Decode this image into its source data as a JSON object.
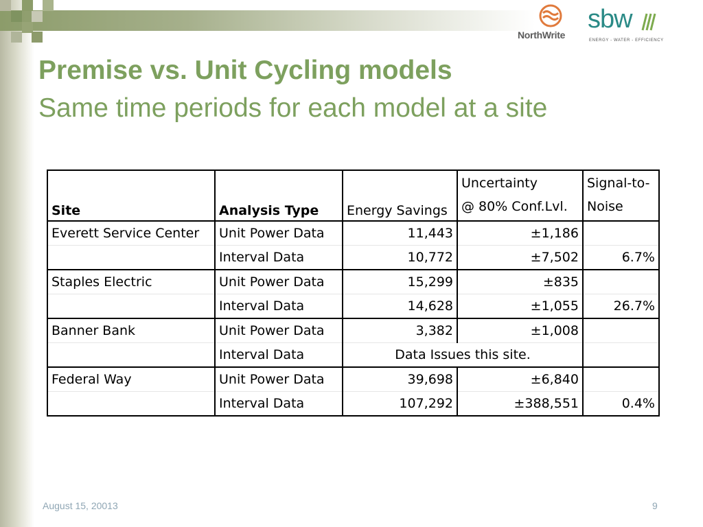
{
  "logos": {
    "northwrite": "NorthWrite",
    "sbw": "sbw",
    "sbw_tagline": "ENERGY - WATER - EFFICIENCY"
  },
  "title": "Premise vs. Unit Cycling models",
  "subtitle": "Same time periods for each model at a site",
  "table": {
    "headers": {
      "site": "Site",
      "analysis_type": "Analysis Type",
      "energy_savings": "Energy Savings",
      "uncertainty_line1": "Uncertainty",
      "uncertainty_line2": "@ 80% Conf.Lvl.",
      "signal_line1": "Signal-to-",
      "signal_line2": "Noise"
    },
    "rows": [
      {
        "site": "Everett Service Center",
        "type": "Unit Power Data",
        "savings": "11,443",
        "uncertainty": "±1,186",
        "signal": ""
      },
      {
        "site": "",
        "type": "Interval Data",
        "savings": "10,772",
        "uncertainty": "±7,502",
        "signal": "6.7%"
      },
      {
        "site": "Staples Electric",
        "type": "Unit Power Data",
        "savings": "15,299",
        "uncertainty": "±835",
        "signal": ""
      },
      {
        "site": "",
        "type": "Interval Data",
        "savings": "14,628",
        "uncertainty": "±1,055",
        "signal": "26.7%"
      },
      {
        "site": "Banner Bank",
        "type": "Unit Power Data",
        "savings": "3,382",
        "uncertainty": "±1,008",
        "signal": ""
      },
      {
        "site": "",
        "type": "Interval Data",
        "note": "Data Issues this site.",
        "signal": ""
      },
      {
        "site": "Federal Way",
        "type": "Unit Power Data",
        "savings": "39,698",
        "uncertainty": "±6,840",
        "signal": ""
      },
      {
        "site": "",
        "type": "Interval Data",
        "savings": "107,292",
        "uncertainty": "±388,551",
        "signal": "0.4%"
      }
    ]
  },
  "footer": {
    "date": "August 15, 20013",
    "page": "9"
  },
  "colors": {
    "title_green": "#7da05e",
    "footer_blue": "#8fa6b4",
    "sbw_teal": "#2a8a86",
    "northwrite_orange": "#e07a3c"
  }
}
